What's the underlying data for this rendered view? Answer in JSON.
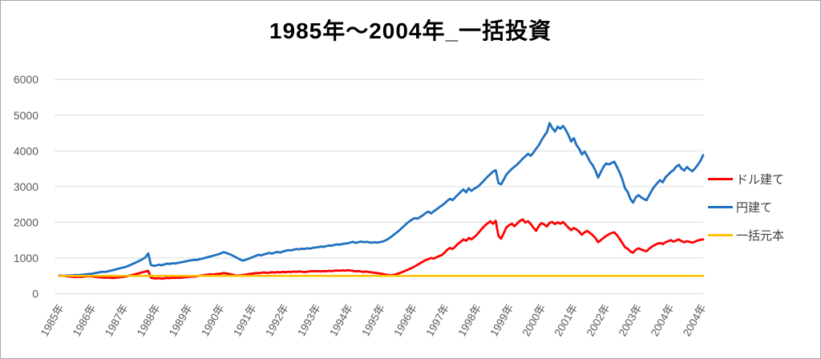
{
  "window": {
    "title": "1985年～2004年_一括投資"
  },
  "colors": {
    "background": "#FFFFFF",
    "chart_border": "#A6A6A6",
    "gridline": "#D9D9D9",
    "axis_text": "#595959",
    "title_text": "#000000",
    "series_red": "#FF0000",
    "series_blue": "#1F70C0",
    "series_orange": "#FFC000"
  },
  "chart_data": {
    "type": "line",
    "title": "1985年～2004年_一括投資",
    "xlabel": "",
    "ylabel": "",
    "ylim": [
      0,
      6000
    ],
    "y_ticks": [
      0,
      1000,
      2000,
      3000,
      4000,
      5000,
      6000
    ],
    "y_tick_labels": [
      "0",
      "1000",
      "2000",
      "3000",
      "4000",
      "5000",
      "6000"
    ],
    "x_tick_labels": [
      "1985年",
      "1986年",
      "1987年",
      "1988年",
      "1989年",
      "1990年",
      "1991年",
      "1992年",
      "1993年",
      "1994年",
      "1995年",
      "1996年",
      "1997年",
      "1998年",
      "1999年",
      "2000年",
      "2001年",
      "2002年",
      "2003年",
      "2004年",
      "2004年"
    ],
    "x_resolution": "monthly, Jan 1985 - Dec 2004 (240 points)",
    "grid": true,
    "legend_position": "right",
    "series": [
      {
        "name": "ドル建て",
        "color": "#FF0000",
        "values": [
          510,
          505,
          495,
          485,
          478,
          472,
          468,
          475,
          470,
          478,
          485,
          492,
          485,
          475,
          468,
          460,
          452,
          446,
          452,
          446,
          440,
          448,
          455,
          462,
          472,
          488,
          505,
          522,
          542,
          562,
          582,
          602,
          622,
          640,
          448,
          432,
          426,
          436,
          422,
          432,
          442,
          436,
          446,
          440,
          450,
          446,
          456,
          462,
          470,
          480,
          475,
          490,
          502,
          512,
          522,
          532,
          542,
          536,
          546,
          556,
          562,
          576,
          566,
          552,
          536,
          518,
          506,
          512,
          522,
          532,
          546,
          556,
          566,
          580,
          572,
          586,
          596,
          582,
          592,
          602,
          592,
          606,
          596,
          610,
          602,
          616,
          606,
          620,
          612,
          626,
          616,
          606,
          616,
          626,
          636,
          626,
          632,
          622,
          636,
          626,
          640,
          632,
          642,
          650,
          642,
          654,
          646,
          658,
          650,
          640,
          626,
          636,
          620,
          610,
          620,
          606,
          596,
          586,
          576,
          566,
          552,
          538,
          524,
          516,
          524,
          545,
          570,
          598,
          628,
          660,
          692,
          724,
          768,
          812,
          856,
          900,
          940,
          968,
          1000,
          982,
          1022,
          1052,
          1082,
          1150,
          1230,
          1282,
          1252,
          1322,
          1400,
          1452,
          1520,
          1482,
          1562,
          1522,
          1582,
          1652,
          1740,
          1830,
          1910,
          1970,
          2030,
          1960,
          2040,
          1620,
          1540,
          1700,
          1860,
          1920,
          1960,
          1890,
          1970,
          2040,
          2080,
          1990,
          2030,
          1950,
          1850,
          1760,
          1900,
          1980,
          1940,
          1880,
          1990,
          2010,
          1950,
          2000,
          1960,
          2010,
          1930,
          1850,
          1780,
          1840,
          1800,
          1740,
          1650,
          1720,
          1760,
          1700,
          1640,
          1560,
          1440,
          1500,
          1560,
          1620,
          1660,
          1700,
          1720,
          1640,
          1540,
          1420,
          1300,
          1260,
          1180,
          1150,
          1230,
          1270,
          1240,
          1210,
          1190,
          1260,
          1320,
          1360,
          1400,
          1420,
          1390,
          1440,
          1470,
          1500,
          1460,
          1490,
          1520,
          1470,
          1440,
          1470,
          1450,
          1430,
          1460,
          1490,
          1510,
          1520
        ]
      },
      {
        "name": "円建て",
        "color": "#1F70C0",
        "values": [
          500,
          498,
          505,
          512,
          508,
          516,
          524,
          520,
          528,
          536,
          544,
          552,
          560,
          572,
          586,
          600,
          615,
          608,
          626,
          642,
          662,
          682,
          702,
          722,
          738,
          762,
          792,
          826,
          860,
          896,
          932,
          972,
          1022,
          1130,
          805,
          782,
          792,
          812,
          796,
          822,
          842,
          832,
          852,
          846,
          862,
          876,
          892,
          906,
          922,
          936,
          950,
          942,
          966,
          982,
          1002,
          1022,
          1042,
          1062,
          1082,
          1102,
          1132,
          1162,
          1142,
          1112,
          1082,
          1042,
          1002,
          962,
          926,
          946,
          972,
          1002,
          1032,
          1062,
          1092,
          1072,
          1102,
          1122,
          1142,
          1122,
          1152,
          1172,
          1152,
          1182,
          1202,
          1222,
          1212,
          1232,
          1252,
          1242,
          1262,
          1252,
          1272,
          1262,
          1282,
          1292,
          1302,
          1322,
          1312,
          1332,
          1352,
          1342,
          1362,
          1382,
          1372,
          1392,
          1402,
          1412,
          1432,
          1452,
          1422,
          1442,
          1462,
          1442,
          1452,
          1438,
          1428,
          1442,
          1432,
          1446,
          1460,
          1490,
          1530,
          1580,
          1640,
          1700,
          1760,
          1830,
          1900,
          1970,
          2030,
          2080,
          2120,
          2100,
          2150,
          2200,
          2260,
          2300,
          2250,
          2310,
          2360,
          2420,
          2470,
          2530,
          2600,
          2660,
          2620,
          2700,
          2780,
          2850,
          2920,
          2840,
          2950,
          2880,
          2940,
          2980,
          3040,
          3120,
          3200,
          3280,
          3350,
          3420,
          3460,
          3100,
          3060,
          3200,
          3340,
          3420,
          3500,
          3560,
          3620,
          3700,
          3780,
          3850,
          3920,
          3860,
          3950,
          4060,
          4160,
          4300,
          4420,
          4520,
          4780,
          4640,
          4540,
          4680,
          4620,
          4700,
          4590,
          4440,
          4260,
          4360,
          4160,
          4060,
          3900,
          3980,
          3850,
          3700,
          3600,
          3450,
          3250,
          3400,
          3550,
          3650,
          3620,
          3660,
          3700,
          3550,
          3400,
          3200,
          2950,
          2850,
          2650,
          2550,
          2700,
          2760,
          2700,
          2650,
          2620,
          2760,
          2900,
          3010,
          3100,
          3180,
          3120,
          3260,
          3330,
          3410,
          3460,
          3560,
          3610,
          3500,
          3450,
          3550,
          3480,
          3430,
          3510,
          3610,
          3720,
          3880
        ]
      },
      {
        "name": "一括元本",
        "color": "#FFC000",
        "constant_value": 500
      }
    ]
  },
  "legend": {
    "items": [
      {
        "label": "ドル建て",
        "color": "#FF0000"
      },
      {
        "label": "円建て",
        "color": "#1F70C0"
      },
      {
        "label": "一括元本",
        "color": "#FFC000"
      }
    ]
  }
}
